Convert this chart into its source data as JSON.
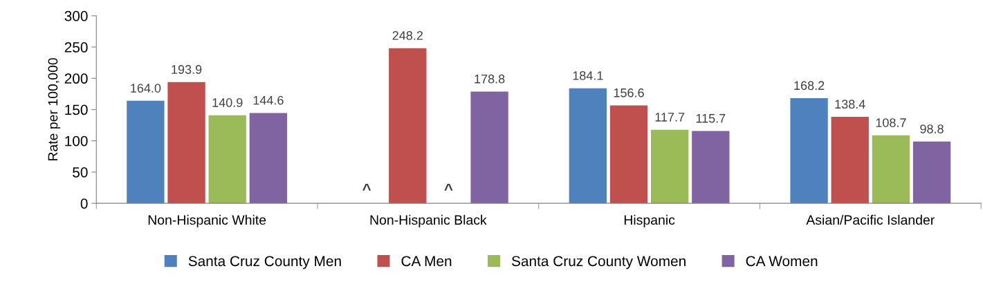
{
  "chart_data": {
    "type": "bar",
    "ylabel": "Rate per 100,000",
    "categories": [
      "Non-Hispanic White",
      "Non-Hispanic Black",
      "Hispanic",
      "Asian/Pacific Islander"
    ],
    "series": [
      {
        "name": "Santa Cruz County Men",
        "color": "#4f81bd",
        "values": [
          164.0,
          null,
          184.1,
          168.2
        ],
        "value_labels": [
          "164.0",
          "^",
          "184.1",
          "168.2"
        ]
      },
      {
        "name": "CA Men",
        "color": "#c0504d",
        "values": [
          193.9,
          248.2,
          156.6,
          138.4
        ],
        "value_labels": [
          "193.9",
          "248.2",
          "156.6",
          "138.4"
        ]
      },
      {
        "name": "Santa Cruz County Women",
        "color": "#9bbb59",
        "values": [
          140.9,
          null,
          117.7,
          108.7
        ],
        "value_labels": [
          "140.9",
          "^",
          "117.7",
          "108.7"
        ]
      },
      {
        "name": "CA Women",
        "color": "#8064a2",
        "values": [
          144.6,
          178.8,
          115.7,
          98.8
        ],
        "value_labels": [
          "144.6",
          "178.8",
          "115.7",
          "98.8"
        ]
      }
    ],
    "ylim": [
      0,
      300
    ],
    "yticks": [
      0,
      50,
      100,
      150,
      200,
      250,
      300
    ],
    "grid": false,
    "legend": "bottom"
  }
}
